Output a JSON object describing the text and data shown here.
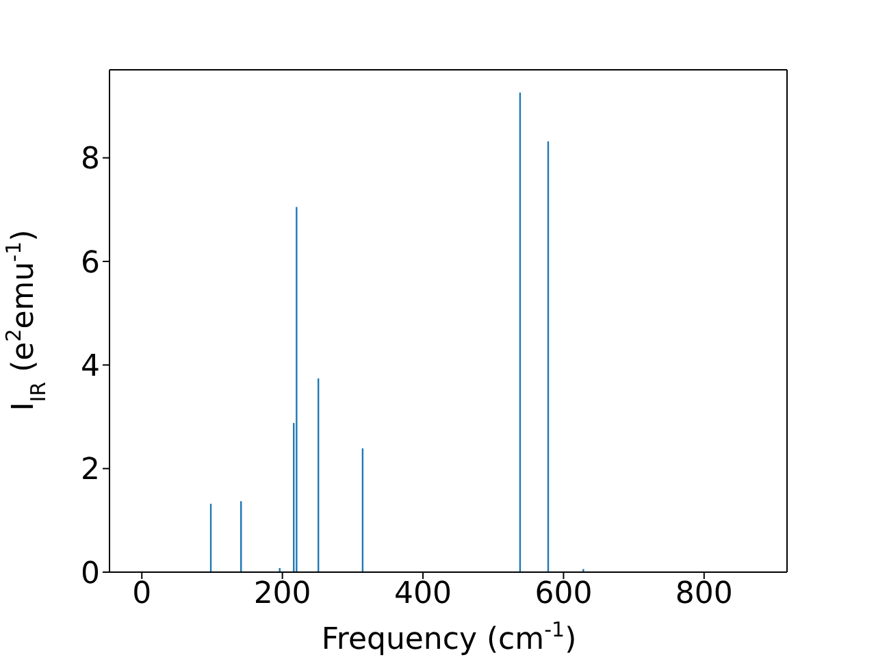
{
  "chart_data": {
    "type": "bar",
    "xlabel": "Frequency (cm$^{-1}$)",
    "ylabel": "I$_{IR}$ (e$^{2}$emu$^{-1}$)",
    "x": [
      99,
      142,
      197,
      206,
      217,
      221,
      246,
      252,
      315,
      410,
      539,
      579,
      629
    ],
    "values": [
      1.32,
      1.37,
      0.08,
      null,
      2.88,
      7.05,
      null,
      3.74,
      2.39,
      null,
      9.26,
      8.32,
      0.06
    ],
    "color": "#1f77b4",
    "xlim": [
      -46,
      918
    ],
    "xticks": [
      0,
      200,
      400,
      600,
      800
    ],
    "ylim": [
      0,
      9.7
    ],
    "yticks": [
      0,
      2,
      4,
      6,
      8
    ],
    "grid": false
  }
}
